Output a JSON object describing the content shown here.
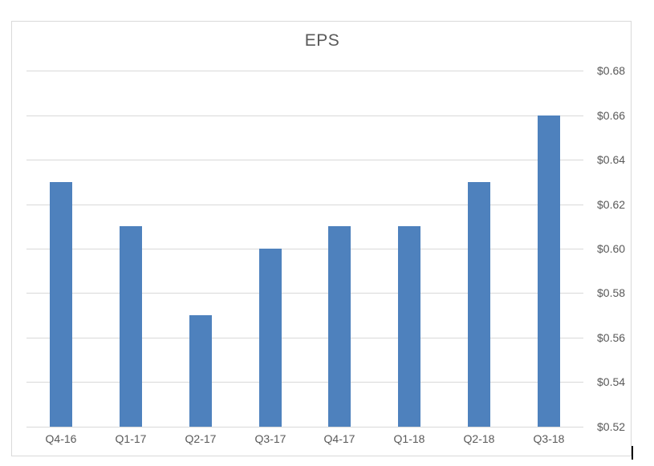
{
  "chart_data": {
    "type": "bar",
    "title": "EPS",
    "categories": [
      "Q4-16",
      "Q1-17",
      "Q2-17",
      "Q3-17",
      "Q4-17",
      "Q1-18",
      "Q2-18",
      "Q3-18"
    ],
    "values": [
      0.63,
      0.61,
      0.57,
      0.6,
      0.61,
      0.61,
      0.63,
      0.66
    ],
    "xlabel": "",
    "ylabel": "",
    "ylim": [
      0.52,
      0.68
    ],
    "ytick_step": 0.02,
    "ytick_labels": [
      "$0.52",
      "$0.54",
      "$0.56",
      "$0.58",
      "$0.60",
      "$0.62",
      "$0.64",
      "$0.66",
      "$0.68"
    ],
    "grid": true,
    "legend": false,
    "axis_side": "right",
    "bar_color": "#4E81BD",
    "gridline_color": "#D9D9D9",
    "text_color": "#595959",
    "border_color": "#D9D9D9"
  }
}
